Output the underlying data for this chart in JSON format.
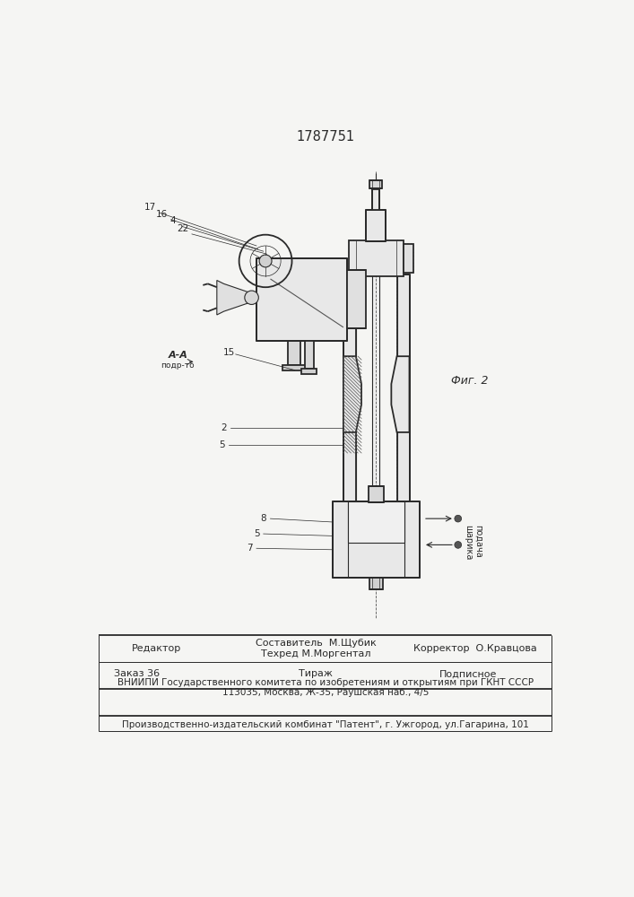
{
  "patent_number": "1787751",
  "fig_label": "Фиг. 2",
  "paper_color": "#f5f5f3",
  "line_color": "#2a2a2a",
  "hatch_color": "#555555",
  "header": {
    "col1": "Редактор",
    "col2a": "Составитель  М.Щубик",
    "col2b": "Техред М.Моргентал",
    "col3": "Корректор  О.Кравцова"
  },
  "footer": {
    "zakaz": "Заказ 36",
    "tirazh": "Тираж",
    "podpisnoe": "Подписное",
    "vniip": "ВНИИПИ Государственного комитета по изобретениям и открытиям при ГКНТ СССР",
    "addr": "113035, Москва, Ж-35, Раушская наб., 4/5",
    "pub": "Производственно-издательский комбинат \"Патент\", г. Ужгород, ул.Гагарина, 101"
  },
  "aa_label": "А-А",
  "aa_sub": "подр-то",
  "podacha": "подача\nшарика"
}
